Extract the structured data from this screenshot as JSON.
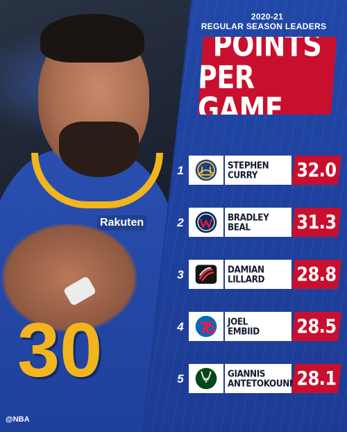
{
  "header": {
    "season": "2020-21",
    "subtitle": "REGULAR SEASON LEADERS",
    "title_line1": "POINTS",
    "title_line2": "PER GAME"
  },
  "photo": {
    "jersey_brand": "Rakuten",
    "jersey_number": "30",
    "credit": "@NBA"
  },
  "leaders": [
    {
      "rank": "1",
      "first": "STEPHEN",
      "last": "CURRY",
      "value": "32.0",
      "logo": "warriors-logo-icon"
    },
    {
      "rank": "2",
      "first": "BRADLEY",
      "last": "BEAL",
      "value": "31.3",
      "logo": "wizards-logo-icon"
    },
    {
      "rank": "3",
      "first": "DAMIAN",
      "last": "LILLARD",
      "value": "28.8",
      "logo": "trail-blazers-logo-icon"
    },
    {
      "rank": "4",
      "first": "JOEL",
      "last": "EMBIID",
      "value": "28.5",
      "logo": "76ers-logo-icon"
    },
    {
      "rank": "5",
      "first": "GIANNIS",
      "last": "ANTETOKOUNMPO",
      "value": "28.1",
      "logo": "bucks-logo-icon"
    }
  ],
  "colors": {
    "accent_red": "#c8102e",
    "panel_blue": "#1d3b93",
    "warriors_blue": "#1d428a",
    "warriors_gold": "#ffc72c",
    "wizards_navy": "#002b5c",
    "wizards_red": "#e31837",
    "blazers_red": "#e03a3e",
    "sixers_blue": "#006bb6",
    "sixers_red": "#ed174c",
    "bucks_green": "#00471b"
  }
}
